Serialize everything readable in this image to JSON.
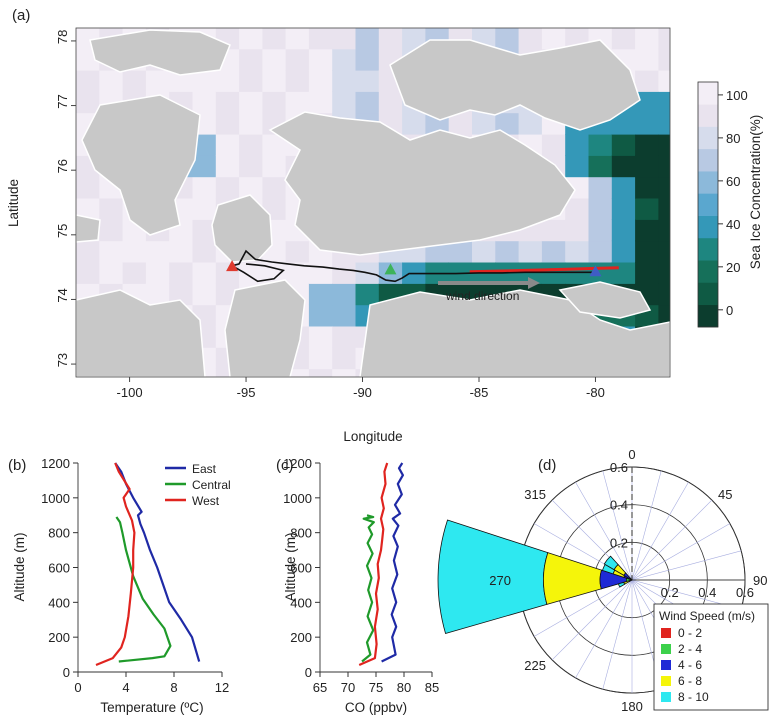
{
  "panels": {
    "a": "(a)",
    "b": "(b)",
    "c": "(c)",
    "d": "(d)"
  },
  "chart_data": [
    {
      "type": "heatmap",
      "panel": "a",
      "xlabel": "Longitude",
      "ylabel": "Latitude",
      "xlim": [
        -102.3,
        -76.8
      ],
      "ylim": [
        72.8,
        78.2
      ],
      "xticks": [
        -100,
        -95,
        -90,
        -85,
        -80
      ],
      "yticks": [
        73,
        74,
        75,
        76,
        77,
        78
      ],
      "colorbar": {
        "label": "Sea Ice Concentration(%)",
        "range": [
          -8,
          106
        ],
        "ticks": [
          0,
          20,
          40,
          60,
          80,
          100
        ],
        "colors": [
          "#0c3d2e",
          "#0f5a44",
          "#16705a",
          "#1e8680",
          "#3498b8",
          "#5aa7cf",
          "#8cb9da",
          "#b8c9e3",
          "#d6dcec",
          "#e9e3ee",
          "#f3eef6"
        ]
      },
      "markers": [
        {
          "name": "West",
          "lon": -95.6,
          "lat": 74.5,
          "color": "#e03a2f"
        },
        {
          "name": "Central",
          "lon": -88.8,
          "lat": 74.45,
          "color": "#3db35a"
        },
        {
          "name": "East",
          "lon": -80.0,
          "lat": 74.42,
          "color": "#3f5cc4"
        }
      ],
      "annotation": "wind direction",
      "flight_track": [
        [
          -95.6,
          74.52
        ],
        [
          -95.3,
          74.55
        ],
        [
          -95.0,
          74.75
        ],
        [
          -94.6,
          74.62
        ],
        [
          -93.9,
          74.58
        ],
        [
          -93.2,
          74.55
        ],
        [
          -92.5,
          74.52
        ],
        [
          -91.7,
          74.5
        ],
        [
          -91.0,
          74.47
        ],
        [
          -90.4,
          74.45
        ],
        [
          -89.9,
          74.42
        ],
        [
          -89.4,
          74.38
        ],
        [
          -89.0,
          74.3
        ],
        [
          -88.6,
          74.28
        ],
        [
          -88.3,
          74.33
        ],
        [
          -88.0,
          74.4
        ],
        [
          -87.0,
          74.4
        ],
        [
          -86.0,
          74.4
        ],
        [
          -85.0,
          74.41
        ],
        [
          -84.0,
          74.41
        ],
        [
          -83.0,
          74.42
        ],
        [
          -82.0,
          74.42
        ],
        [
          -81.0,
          74.42
        ],
        [
          -80.0,
          74.42
        ]
      ],
      "loop_track": [
        [
          -95.6,
          74.52
        ],
        [
          -95.1,
          74.42
        ],
        [
          -94.5,
          74.28
        ],
        [
          -93.8,
          74.32
        ],
        [
          -93.4,
          74.45
        ],
        [
          -94.2,
          74.52
        ],
        [
          -95.0,
          74.55
        ]
      ],
      "red_track": [
        [
          -85.4,
          74.43
        ],
        [
          -84.0,
          74.44
        ],
        [
          -83.0,
          74.45
        ],
        [
          -82.0,
          74.46
        ],
        [
          -81.0,
          74.47
        ],
        [
          -80.0,
          74.48
        ],
        [
          -79.0,
          74.49
        ]
      ]
    },
    {
      "type": "line",
      "panel": "b",
      "xlabel": "Temperature (ºC)",
      "ylabel": "Altitude (m)",
      "xlim": [
        0,
        12
      ],
      "ylim": [
        0,
        1200
      ],
      "xticks": [
        0,
        4,
        8,
        12
      ],
      "yticks": [
        0,
        200,
        400,
        600,
        800,
        1000,
        1200
      ],
      "series": [
        {
          "name": "East",
          "color": "#1f2aa6",
          "x": [
            10.1,
            9.5,
            8.6,
            7.6,
            7.1,
            6.6,
            6.0,
            5.5,
            5.2,
            5.0,
            5.3,
            4.6,
            4.0,
            3.6,
            3.1
          ],
          "y": [
            60,
            200,
            300,
            400,
            500,
            600,
            700,
            800,
            850,
            900,
            920,
            1000,
            1080,
            1150,
            1200
          ]
        },
        {
          "name": "Central",
          "color": "#1f9a2a",
          "x": [
            3.4,
            6.2,
            7.2,
            7.7,
            7.2,
            6.3,
            5.4,
            4.6,
            4.0,
            3.7,
            3.5,
            3.2
          ],
          "y": [
            60,
            80,
            90,
            150,
            250,
            330,
            420,
            550,
            700,
            800,
            860,
            890
          ]
        },
        {
          "name": "West",
          "color": "#e0241f",
          "x": [
            1.5,
            2.9,
            3.6,
            3.9,
            4.2,
            4.4,
            4.6,
            4.6,
            4.7,
            4.5,
            4.0,
            3.8,
            4.3,
            3.4,
            3.1
          ],
          "y": [
            40,
            80,
            140,
            200,
            320,
            450,
            600,
            700,
            800,
            870,
            950,
            1000,
            1050,
            1150,
            1200
          ]
        }
      ]
    },
    {
      "type": "line",
      "panel": "c",
      "xlabel": "CO (ppbv)",
      "ylabel": "Altitude (m)",
      "xlim": [
        65,
        85
      ],
      "ylim": [
        0,
        1200
      ],
      "xticks": [
        65,
        70,
        75,
        80,
        85
      ],
      "yticks": [
        0,
        200,
        400,
        600,
        800,
        1000,
        1200
      ],
      "series": [
        {
          "name": "East",
          "color": "#1f2aa6",
          "x": [
            76.0,
            78.5,
            77.9,
            78.6,
            77.8,
            78.6,
            77.9,
            78.8,
            78.2,
            78.9,
            78.1,
            79.0,
            78.0,
            79.3,
            78.4,
            79.6,
            78.9,
            79.8,
            79.1,
            79.7
          ],
          "y": [
            60,
            100,
            200,
            260,
            330,
            400,
            480,
            560,
            640,
            720,
            780,
            840,
            880,
            910,
            960,
            1020,
            1080,
            1130,
            1170,
            1200
          ]
        },
        {
          "name": "Central",
          "color": "#1f9a2a",
          "x": [
            72.5,
            74.0,
            73.4,
            74.5,
            73.5,
            74.3,
            73.6,
            74.2,
            73.4,
            74.4,
            73.5,
            74.3,
            73.7,
            74.6,
            72.8,
            74.5,
            73.4
          ],
          "y": [
            60,
            100,
            170,
            240,
            320,
            400,
            470,
            540,
            610,
            680,
            740,
            790,
            830,
            860,
            880,
            890,
            900
          ]
        },
        {
          "name": "West",
          "color": "#e0241f",
          "x": [
            72.0,
            74.8,
            75.1,
            74.8,
            75.3,
            75.0,
            75.5,
            75.3,
            75.9,
            76.1,
            76.3,
            75.9,
            76.4,
            76.0,
            76.7,
            76.5,
            77.0
          ],
          "y": [
            40,
            80,
            160,
            260,
            360,
            450,
            540,
            620,
            700,
            760,
            820,
            880,
            940,
            1000,
            1080,
            1150,
            1200
          ]
        }
      ]
    },
    {
      "type": "pie",
      "subtype": "polar_wind_rose",
      "panel": "d",
      "angle_ticks": [
        0,
        45,
        90,
        180,
        225,
        270,
        315
      ],
      "radial_ticks": [
        0.2,
        0.4,
        0.6
      ],
      "radial_max": 0.6,
      "legend": {
        "title": "Wind Speed (m/s)",
        "placement": "bottom-right"
      },
      "categories": [
        "0 - 2",
        "2 - 4",
        "4 - 6",
        "6 - 8",
        "8 - 10"
      ],
      "colors": [
        "#e0241f",
        "#3cd14b",
        "#1f2ad6",
        "#f5f50a",
        "#2ee8f0"
      ],
      "petals": [
        {
          "dir_start": 254,
          "dir_end": 288,
          "values": [
            0.01,
            0.02,
            0.14,
            0.3,
            0.56
          ]
        },
        {
          "dir_start": 288,
          "dir_end": 300,
          "values": [
            0.005,
            0.01,
            0.03,
            0.06,
            0.06
          ]
        },
        {
          "dir_start": 300,
          "dir_end": 318,
          "values": [
            0.0,
            0.01,
            0.04,
            0.06,
            0.06
          ]
        },
        {
          "dir_start": 240,
          "dir_end": 254,
          "values": [
            0.0,
            0.005,
            0.01,
            0.03,
            0.03
          ]
        }
      ]
    }
  ]
}
